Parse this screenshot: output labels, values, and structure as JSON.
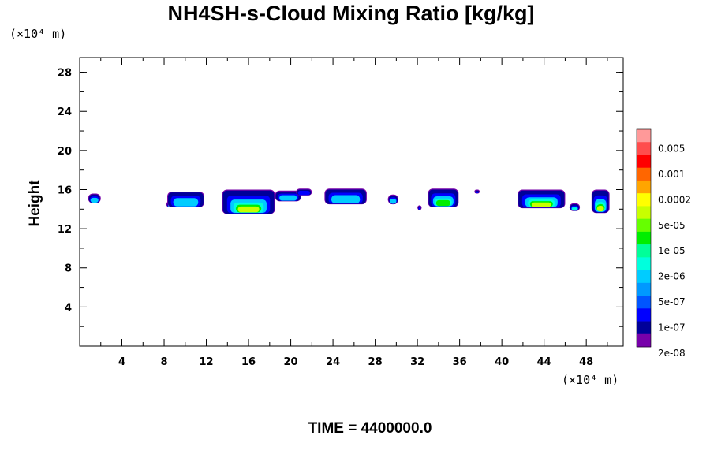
{
  "chart_data": {
    "type": "heatmap",
    "title": "NH4SH-s-Cloud Mixing Ratio [kg/kg]",
    "ylabel": "Height",
    "x_unit": "(×10⁴ m)",
    "y_unit": "(×10⁴ m)",
    "xlim": [
      0,
      51.5
    ],
    "ylim": [
      0,
      29.5
    ],
    "x_ticks": [
      "4",
      "8",
      "12",
      "16",
      "20",
      "24",
      "28",
      "32",
      "36",
      "40",
      "44",
      "48"
    ],
    "y_ticks": [
      "4",
      "8",
      "12",
      "16",
      "20",
      "24",
      "28"
    ],
    "time_label": "TIME = 4400000.0",
    "colorbar": {
      "labels": [
        "0.005",
        "0.001",
        "0.0002",
        "5e-05",
        "1e-05",
        "2e-06",
        "5e-07",
        "1e-07",
        "2e-08"
      ],
      "colors": [
        "#ff9999",
        "#ff4d4d",
        "#ff0000",
        "#ff6600",
        "#ffa500",
        "#ffff00",
        "#c8ff00",
        "#66ff00",
        "#00ee00",
        "#00ff99",
        "#00ffdd",
        "#00ccff",
        "#0099ff",
        "#0055ff",
        "#0000ff",
        "#000099",
        "#7700aa"
      ]
    },
    "cloud_patches": [
      {
        "x": [
          0.8,
          2.0
        ],
        "z": [
          14.6,
          15.6
        ],
        "max_level": "5e-07"
      },
      {
        "x": [
          8.2,
          9.0
        ],
        "z": [
          14.2,
          14.8
        ],
        "max_level": "5e-07"
      },
      {
        "x": [
          8.3,
          11.8
        ],
        "z": [
          14.2,
          15.8
        ],
        "max_level": "5e-07"
      },
      {
        "x": [
          13.5,
          18.5
        ],
        "z": [
          13.5,
          16.0
        ],
        "max_level": "5e-05"
      },
      {
        "x": [
          18.5,
          21.0
        ],
        "z": [
          14.8,
          15.9
        ],
        "max_level": "5e-07"
      },
      {
        "x": [
          20.5,
          22.0
        ],
        "z": [
          15.4,
          16.1
        ],
        "max_level": "1e-07"
      },
      {
        "x": [
          23.2,
          27.2
        ],
        "z": [
          14.5,
          16.1
        ],
        "max_level": "5e-07"
      },
      {
        "x": [
          29.2,
          30.2
        ],
        "z": [
          14.5,
          15.5
        ],
        "max_level": "5e-07"
      },
      {
        "x": [
          32.0,
          32.4
        ],
        "z": [
          13.9,
          14.4
        ],
        "max_level": "1e-05"
      },
      {
        "x": [
          33.0,
          35.9
        ],
        "z": [
          14.2,
          16.1
        ],
        "max_level": "1e-05"
      },
      {
        "x": [
          37.4,
          37.9
        ],
        "z": [
          15.6,
          16.0
        ],
        "max_level": "1e-07"
      },
      {
        "x": [
          41.5,
          46.0
        ],
        "z": [
          14.1,
          16.0
        ],
        "max_level": "5e-05"
      },
      {
        "x": [
          46.4,
          47.4
        ],
        "z": [
          13.8,
          14.6
        ],
        "max_level": "2e-06"
      },
      {
        "x": [
          48.5,
          50.2
        ],
        "z": [
          13.6,
          16.0
        ],
        "max_level": "5e-05"
      }
    ]
  }
}
